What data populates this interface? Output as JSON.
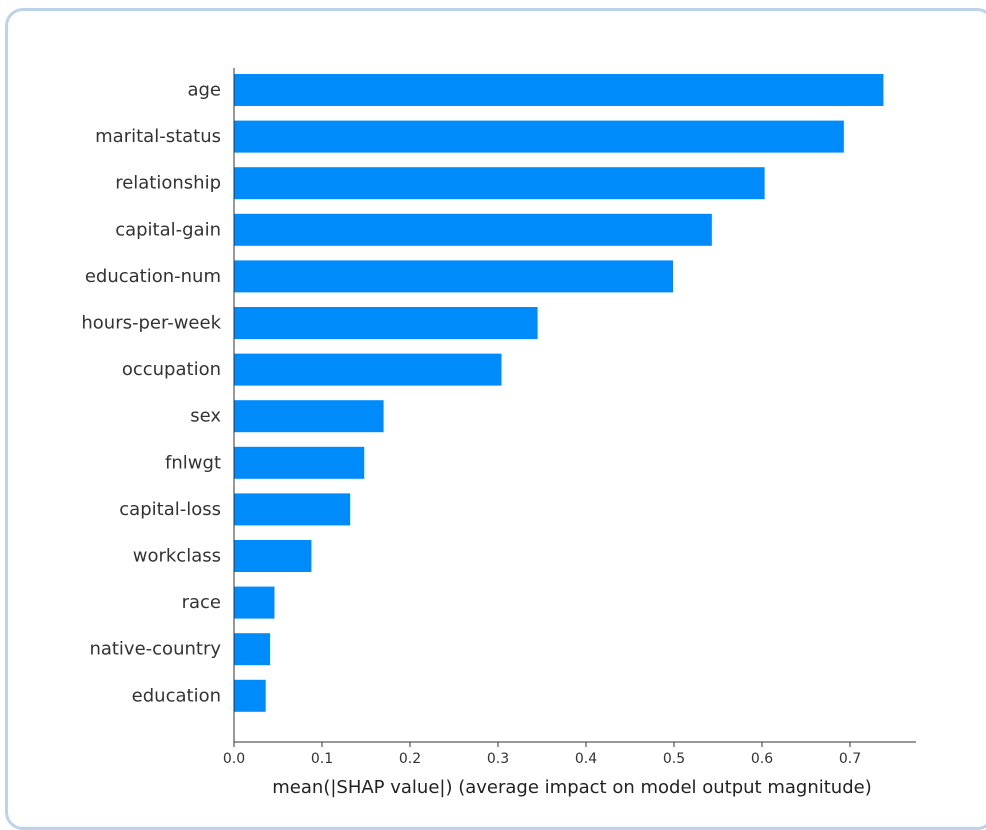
{
  "chart_data": {
    "type": "bar",
    "orientation": "horizontal",
    "categories": [
      "age",
      "marital-status",
      "relationship",
      "capital-gain",
      "education-num",
      "hours-per-week",
      "occupation",
      "sex",
      "fnlwgt",
      "capital-loss",
      "workclass",
      "race",
      "native-country",
      "education"
    ],
    "values": [
      0.738,
      0.693,
      0.603,
      0.543,
      0.499,
      0.345,
      0.304,
      0.17,
      0.148,
      0.132,
      0.088,
      0.046,
      0.041,
      0.036
    ],
    "xticks": [
      "0.0",
      "0.1",
      "0.2",
      "0.3",
      "0.4",
      "0.5",
      "0.6",
      "0.7"
    ],
    "xlim": [
      0,
      0.775
    ],
    "xlabel": "mean(|SHAP value|) (average impact on model output magnitude)",
    "ylabel": "",
    "title": "",
    "bar_color": "#008bfb",
    "grid": false
  }
}
